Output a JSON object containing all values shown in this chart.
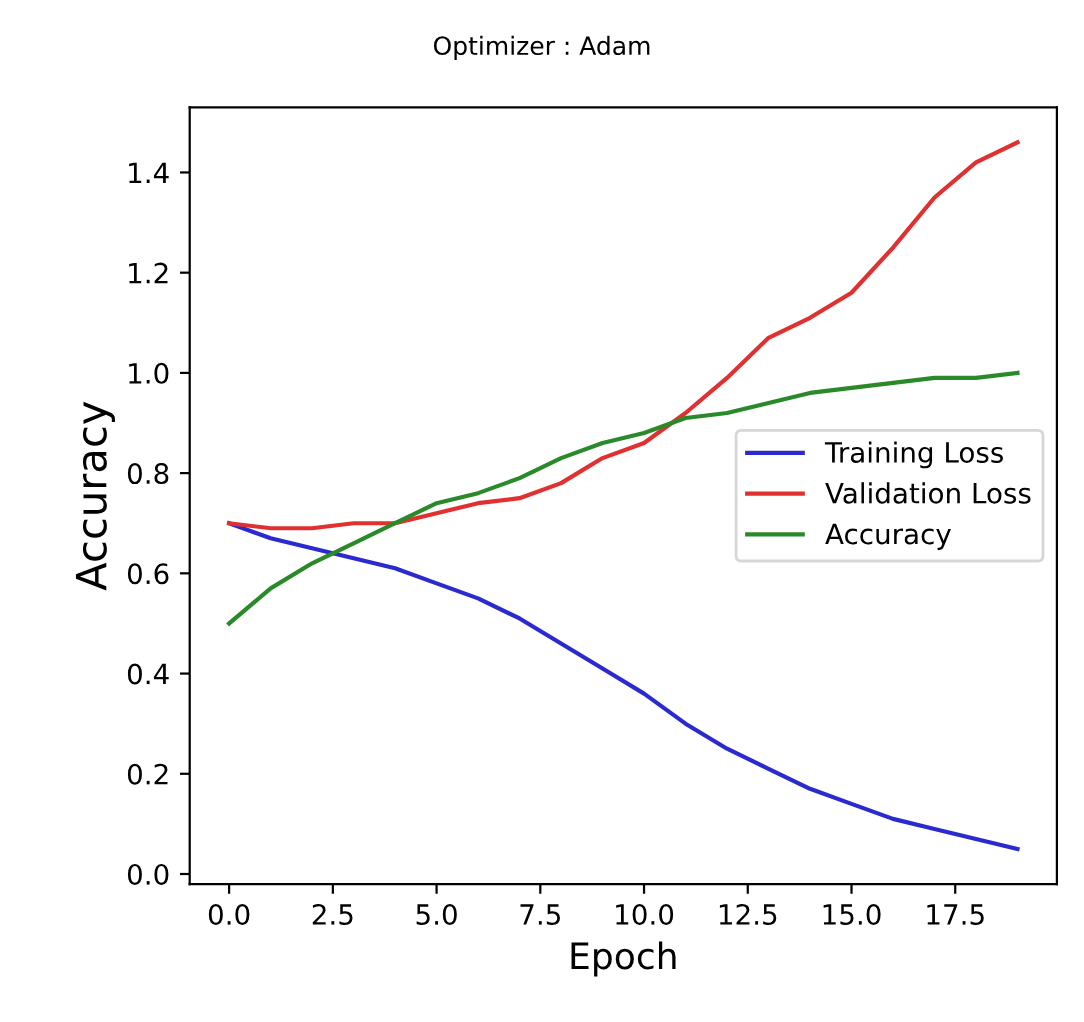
{
  "chart_data": {
    "type": "line",
    "title": "Optimizer : Adam",
    "xlabel": "Epoch",
    "ylabel": "Accuracy",
    "x": [
      0,
      1,
      2,
      3,
      4,
      5,
      6,
      7,
      8,
      9,
      10,
      11,
      12,
      13,
      14,
      15,
      16,
      17,
      18,
      19
    ],
    "series": [
      {
        "name": "Training Loss",
        "color": "#2a2ad0",
        "values": [
          0.7,
          0.67,
          0.65,
          0.63,
          0.61,
          0.58,
          0.55,
          0.51,
          0.46,
          0.41,
          0.36,
          0.3,
          0.25,
          0.21,
          0.17,
          0.14,
          0.11,
          0.09,
          0.07,
          0.05
        ]
      },
      {
        "name": "Validation Loss",
        "color": "#e03030",
        "values": [
          0.7,
          0.69,
          0.69,
          0.7,
          0.7,
          0.72,
          0.74,
          0.75,
          0.78,
          0.83,
          0.86,
          0.92,
          0.99,
          1.07,
          1.11,
          1.16,
          1.25,
          1.35,
          1.42,
          1.46
        ]
      },
      {
        "name": "Accuracy",
        "color": "#2a8a2a",
        "values": [
          0.5,
          0.57,
          0.62,
          0.66,
          0.7,
          0.74,
          0.76,
          0.79,
          0.83,
          0.86,
          0.88,
          0.91,
          0.92,
          0.94,
          0.96,
          0.97,
          0.98,
          0.99,
          0.99,
          1.0
        ]
      }
    ],
    "xlim": [
      -0.95,
      19.95
    ],
    "ylim": [
      -0.02,
      1.53
    ],
    "xticks": [
      {
        "value": 0,
        "label": "0.0"
      },
      {
        "value": 2.5,
        "label": "2.5"
      },
      {
        "value": 5,
        "label": "5.0"
      },
      {
        "value": 7.5,
        "label": "7.5"
      },
      {
        "value": 10,
        "label": "10.0"
      },
      {
        "value": 12.5,
        "label": "12.5"
      },
      {
        "value": 15,
        "label": "15.0"
      },
      {
        "value": 17.5,
        "label": "17.5"
      }
    ],
    "yticks": [
      {
        "value": 0,
        "label": "0.0"
      },
      {
        "value": 0.2,
        "label": "0.2"
      },
      {
        "value": 0.4,
        "label": "0.4"
      },
      {
        "value": 0.6,
        "label": "0.6"
      },
      {
        "value": 0.8,
        "label": "0.8"
      },
      {
        "value": 1.0,
        "label": "1.0"
      },
      {
        "value": 1.2,
        "label": "1.2"
      },
      {
        "value": 1.4,
        "label": "1.4"
      }
    ],
    "legend": "right",
    "grid": false,
    "marker": "none",
    "line_style": "solid"
  }
}
